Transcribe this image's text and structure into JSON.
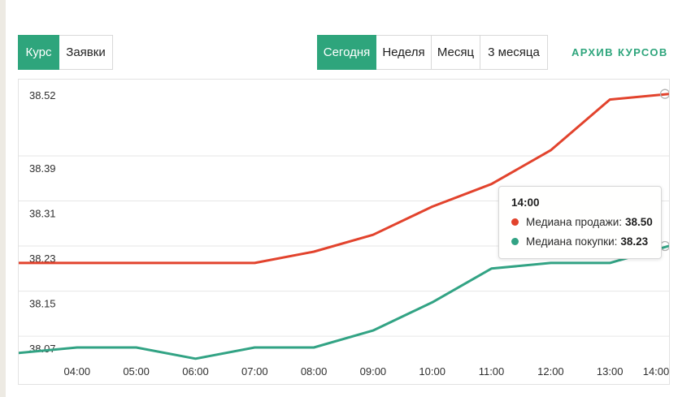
{
  "colors": {
    "accent_green": "#2ea57c",
    "sell_line_red": "#e2432d",
    "buy_line_teal": "#32a384",
    "gridline": "#e6e6e6",
    "marker_ring": "#b3b3b3"
  },
  "tabs_left": {
    "items": [
      {
        "label": "Курс",
        "active": true
      },
      {
        "label": "Заявки",
        "active": false
      }
    ]
  },
  "tabs_period": {
    "items": [
      {
        "label": "Сегодня",
        "active": true
      },
      {
        "label": "Неделя",
        "active": false
      },
      {
        "label": "Месяц",
        "active": false
      },
      {
        "label": "3 месяца",
        "active": false
      }
    ]
  },
  "archive_link_label": "АРХИВ КУРСОВ",
  "tooltip": {
    "time": "14:00",
    "rows": [
      {
        "label": "Медиана продажи:",
        "value": "38.50",
        "color": "#e2432d"
      },
      {
        "label": "Медиана покупки:",
        "value": "38.23",
        "color": "#32a384"
      }
    ]
  },
  "chart_data": {
    "type": "line",
    "title": "",
    "xlabel": "",
    "ylabel": "",
    "x": [
      "03:00",
      "04:00",
      "05:00",
      "06:00",
      "07:00",
      "08:00",
      "09:00",
      "10:00",
      "11:00",
      "12:00",
      "13:00",
      "14:00"
    ],
    "x_tick_labels": [
      "04:00",
      "05:00",
      "06:00",
      "07:00",
      "08:00",
      "09:00",
      "10:00",
      "11:00",
      "12:00",
      "13:00",
      "14:00"
    ],
    "y_ticks": [
      "38.52",
      "38.39",
      "38.31",
      "38.23",
      "38.15",
      "38.07"
    ],
    "ylim": [
      38.02,
      38.525
    ],
    "grid": "horizontal-only",
    "legend_position": "tooltip-only",
    "hover_x": "14:00",
    "series": [
      {
        "name": "Медиана продажи",
        "color": "#e2432d",
        "values": [
          38.2,
          38.2,
          38.2,
          38.2,
          38.2,
          38.22,
          38.25,
          38.3,
          38.34,
          38.4,
          38.49,
          38.5
        ]
      },
      {
        "name": "Медиана покупки",
        "color": "#32a384",
        "values": [
          38.04,
          38.05,
          38.05,
          38.03,
          38.05,
          38.05,
          38.08,
          38.13,
          38.19,
          38.2,
          38.2,
          38.23
        ]
      }
    ]
  }
}
